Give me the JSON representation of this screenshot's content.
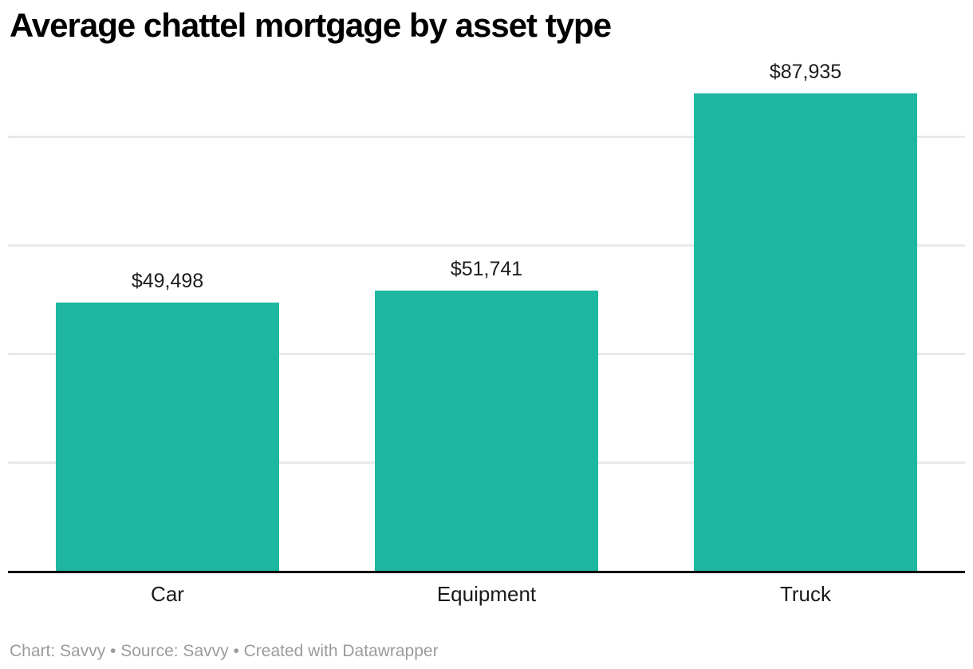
{
  "chart_data": {
    "type": "bar",
    "title": "Average chattel mortgage by asset type",
    "categories": [
      "Car",
      "Equipment",
      "Truck"
    ],
    "values": [
      49498,
      51741,
      87935
    ],
    "value_labels": [
      "$49,498",
      "$51,741",
      "$87,935"
    ],
    "xlabel": "",
    "ylabel": "",
    "ylim": [
      0,
      88000
    ],
    "gridline_values": [
      20000,
      40000,
      60000,
      80000
    ],
    "grid": true,
    "legend": "none",
    "y_axis_tick_labels_visible": false,
    "colors": {
      "bar": "#1eb8a2",
      "gridline": "#e9e9e9",
      "axis_line": "#0d0d0d",
      "title": "#000000",
      "value_label": "#1d1d1d",
      "category_label": "#1a1a1a",
      "footer": "#9b9b9b",
      "background": "#ffffff"
    }
  },
  "footer": {
    "text": "Chart: Savvy • Source: Savvy • Created with Datawrapper"
  }
}
